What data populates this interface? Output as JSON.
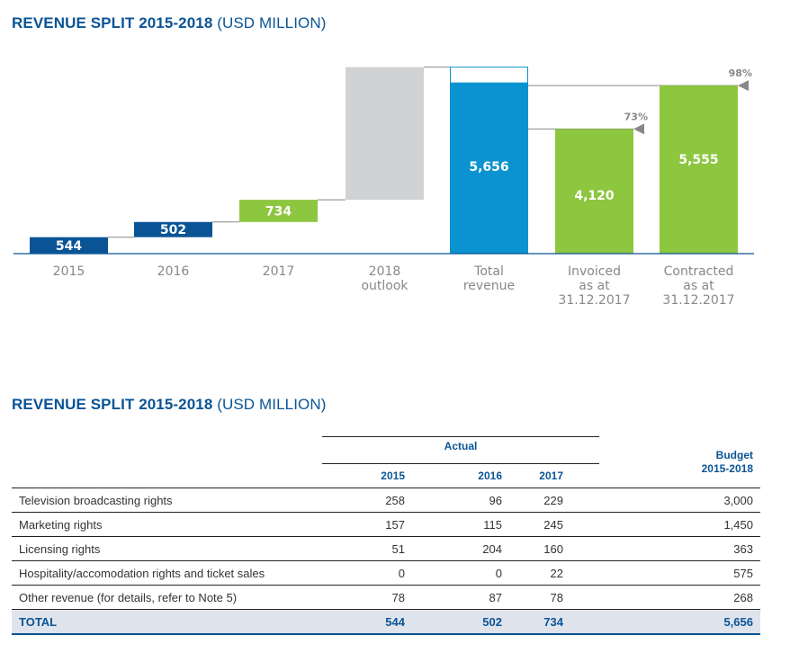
{
  "chart_title": {
    "bold": "REVENUE SPLIT 2015-2018",
    "sub": "(USD MILLION)"
  },
  "table_title": {
    "bold": "REVENUE SPLIT 2015-2018",
    "sub": "(USD MILLION)"
  },
  "chart_data": {
    "type": "bar",
    "subtype": "waterfall",
    "title": "REVENUE SPLIT 2015-2018 (USD MILLION)",
    "categories": [
      "2015",
      "2016",
      "2017",
      "2018\noutlook",
      "Total\nrevenue",
      "Invoiced\nas at\n31.12.2017",
      "Contracted\nas at\n31.12.2017"
    ],
    "bars": [
      {
        "category": "2015",
        "value": 544,
        "label": "544",
        "color": "#0a5495",
        "base": 0
      },
      {
        "category": "2016",
        "value": 502,
        "label": "502",
        "color": "#0a5495",
        "base": 544
      },
      {
        "category": "2017",
        "value": 734,
        "label": "734",
        "color": "#8dc63f",
        "base": 1046
      },
      {
        "category": "2018 outlook",
        "value": 3876,
        "label": "",
        "color": "#d1d2d4",
        "base": 1780
      },
      {
        "category": "Total revenue",
        "value": 5656,
        "label": "5,656",
        "color": "#0b92d0",
        "base": 0
      },
      {
        "category": "Invoiced as at 31.12.2017",
        "value": 4120,
        "label": "4,120",
        "color": "#8dc63f",
        "base": 0,
        "percent_label": "73%"
      },
      {
        "category": "Contracted as at 31.12.2017",
        "value": 5555,
        "label": "5,555",
        "color": "#8dc63f",
        "base": 0,
        "percent_label": "98%"
      }
    ],
    "ylim": [
      0,
      6200
    ],
    "grid": false,
    "xlabel": "",
    "ylabel": ""
  },
  "table": {
    "group_header": "Actual",
    "budget_header": [
      "Budget",
      "2015-2018"
    ],
    "columns": [
      "2015",
      "2016",
      "2017"
    ],
    "rows": [
      {
        "label": "Television broadcasting rights",
        "values": [
          "258",
          "96",
          "229",
          "3,000"
        ]
      },
      {
        "label": "Marketing rights",
        "values": [
          "157",
          "115",
          "245",
          "1,450"
        ]
      },
      {
        "label": "Licensing rights",
        "values": [
          "51",
          "204",
          "160",
          "363"
        ]
      },
      {
        "label": "Hospitality/accomodation rights and ticket sales",
        "values": [
          "0",
          "0",
          "22",
          "575"
        ]
      },
      {
        "label": "Other revenue (for details, refer to Note 5)",
        "values": [
          "78",
          "87",
          "78",
          "268"
        ]
      }
    ],
    "total": {
      "label": "TOTAL",
      "values": [
        "544",
        "502",
        "734",
        "5,656"
      ]
    }
  }
}
